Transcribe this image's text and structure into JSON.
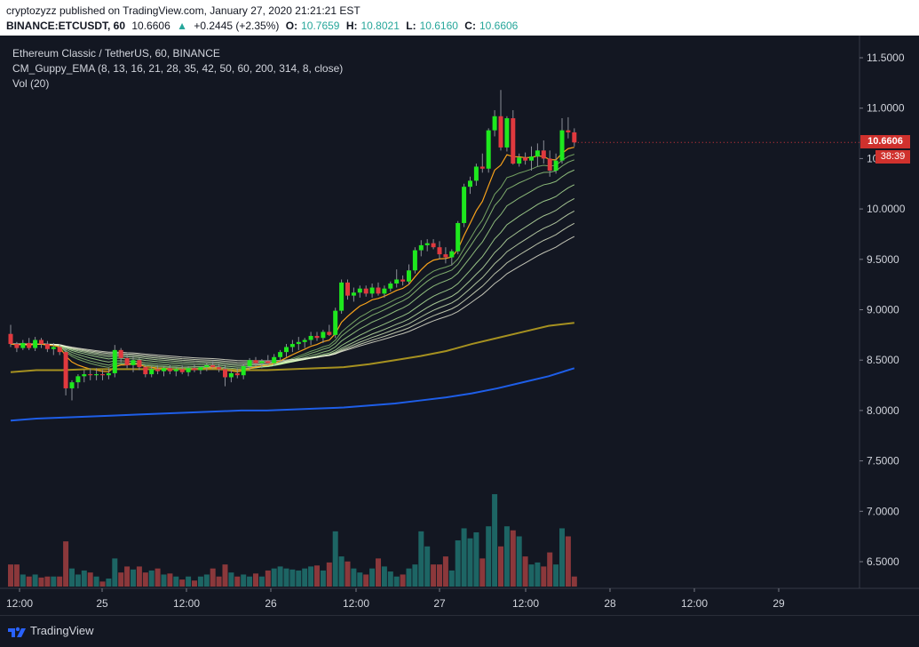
{
  "header": {
    "publish_line": "cryptozyzz published on TradingView.com, January 27, 2020 21:21:21 EST",
    "symbol": "BINANCE:ETCUSDT, 60",
    "last": "10.6606",
    "change": "+0.2445 (+2.35%)",
    "o_label": "O:",
    "o_value": "10.7659",
    "h_label": "H:",
    "h_value": "10.8021",
    "l_label": "L:",
    "l_value": "10.6160",
    "c_label": "C:",
    "c_value": "10.6606"
  },
  "legend": {
    "title": "Ethereum Classic / TetherUS, 60, BINANCE",
    "indicator": "CM_Guppy_EMA (8, 13, 16, 21, 28, 35, 42, 50, 60, 200, 314, 8, close)",
    "volume": "Vol (20)"
  },
  "price_tag": "10.6606",
  "countdown": "38:39",
  "footer": {
    "brand": "TradingView"
  },
  "colors": {
    "background": "#131722",
    "up": "#1ee81e",
    "down": "#e0393e",
    "vol_up": "#26a69a",
    "vol_down": "#ef5350",
    "ema_fast": "#f7a21b",
    "ema200": "#a69120",
    "ema314": "#1e5ee8"
  },
  "chart_data": {
    "type": "candlestick",
    "y_ticks": [
      "11.5000",
      "11.0000",
      "10.5000",
      "10.0000",
      "9.5000",
      "9.0000",
      "8.5000",
      "8.0000",
      "7.5000",
      "7.0000",
      "6.5000"
    ],
    "ylim": [
      6.25,
      11.75
    ],
    "x_ticks": [
      "12:00",
      "25",
      "12:00",
      "26",
      "12:00",
      "27",
      "12:00",
      "28",
      "12:00",
      "29"
    ],
    "candles": [
      [
        8.76,
        8.85,
        8.63,
        8.66
      ],
      [
        8.66,
        8.68,
        8.58,
        8.62
      ],
      [
        8.62,
        8.7,
        8.6,
        8.67
      ],
      [
        8.67,
        8.72,
        8.6,
        8.62
      ],
      [
        8.62,
        8.73,
        8.59,
        8.7
      ],
      [
        8.7,
        8.72,
        8.62,
        8.66
      ],
      [
        8.66,
        8.69,
        8.58,
        8.61
      ],
      [
        8.61,
        8.67,
        8.55,
        8.63
      ],
      [
        8.63,
        8.66,
        8.55,
        8.58
      ],
      [
        8.58,
        8.62,
        8.15,
        8.22
      ],
      [
        8.22,
        8.3,
        8.1,
        8.28
      ],
      [
        8.28,
        8.36,
        8.22,
        8.34
      ],
      [
        8.34,
        8.4,
        8.28,
        8.36
      ],
      [
        8.36,
        8.42,
        8.3,
        8.35
      ],
      [
        8.35,
        8.42,
        8.3,
        8.36
      ],
      [
        8.36,
        8.4,
        8.3,
        8.35
      ],
      [
        8.35,
        8.42,
        8.31,
        8.37
      ],
      [
        8.37,
        8.65,
        8.33,
        8.6
      ],
      [
        8.6,
        8.62,
        8.48,
        8.52
      ],
      [
        8.52,
        8.56,
        8.42,
        8.45
      ],
      [
        8.45,
        8.54,
        8.38,
        8.5
      ],
      [
        8.5,
        8.52,
        8.4,
        8.43
      ],
      [
        8.43,
        8.45,
        8.33,
        8.36
      ],
      [
        8.36,
        8.44,
        8.33,
        8.41
      ],
      [
        8.41,
        8.45,
        8.36,
        8.39
      ],
      [
        8.39,
        8.44,
        8.34,
        8.42
      ],
      [
        8.42,
        8.45,
        8.36,
        8.39
      ],
      [
        8.39,
        8.43,
        8.34,
        8.41
      ],
      [
        8.41,
        8.45,
        8.36,
        8.38
      ],
      [
        8.38,
        8.44,
        8.34,
        8.42
      ],
      [
        8.42,
        8.46,
        8.38,
        8.4
      ],
      [
        8.4,
        8.44,
        8.36,
        8.43
      ],
      [
        8.43,
        8.47,
        8.39,
        8.45
      ],
      [
        8.45,
        8.49,
        8.41,
        8.43
      ],
      [
        8.43,
        8.46,
        8.38,
        8.41
      ],
      [
        8.41,
        8.45,
        8.24,
        8.33
      ],
      [
        8.33,
        8.4,
        8.28,
        8.37
      ],
      [
        8.37,
        8.42,
        8.32,
        8.35
      ],
      [
        8.35,
        8.46,
        8.31,
        8.44
      ],
      [
        8.44,
        8.52,
        8.4,
        8.5
      ],
      [
        8.5,
        8.53,
        8.44,
        8.47
      ],
      [
        8.47,
        8.51,
        8.42,
        8.49
      ],
      [
        8.49,
        8.55,
        8.45,
        8.47
      ],
      [
        8.47,
        8.56,
        8.44,
        8.53
      ],
      [
        8.53,
        8.6,
        8.49,
        8.58
      ],
      [
        8.58,
        8.66,
        8.53,
        8.63
      ],
      [
        8.63,
        8.7,
        8.58,
        8.66
      ],
      [
        8.66,
        8.73,
        8.6,
        8.68
      ],
      [
        8.68,
        8.72,
        8.62,
        8.7
      ],
      [
        8.7,
        8.78,
        8.65,
        8.74
      ],
      [
        8.74,
        8.78,
        8.69,
        8.72
      ],
      [
        8.72,
        8.8,
        8.67,
        8.78
      ],
      [
        8.78,
        8.85,
        8.74,
        8.75
      ],
      [
        8.75,
        9.02,
        8.72,
        8.99
      ],
      [
        8.99,
        9.3,
        8.96,
        9.27
      ],
      [
        9.27,
        9.3,
        9.1,
        9.14
      ],
      [
        9.14,
        9.22,
        9.08,
        9.17
      ],
      [
        9.17,
        9.24,
        9.12,
        9.21
      ],
      [
        9.21,
        9.24,
        9.13,
        9.16
      ],
      [
        9.16,
        9.26,
        9.12,
        9.22
      ],
      [
        9.22,
        9.27,
        9.14,
        9.16
      ],
      [
        9.16,
        9.24,
        9.12,
        9.21
      ],
      [
        9.21,
        9.28,
        9.18,
        9.26
      ],
      [
        9.26,
        9.4,
        9.22,
        9.3
      ],
      [
        9.3,
        9.34,
        9.24,
        9.28
      ],
      [
        9.28,
        9.45,
        9.25,
        9.39
      ],
      [
        9.39,
        9.62,
        9.36,
        9.59
      ],
      [
        9.59,
        9.69,
        9.53,
        9.64
      ],
      [
        9.64,
        9.7,
        9.58,
        9.66
      ],
      [
        9.66,
        9.7,
        9.6,
        9.62
      ],
      [
        9.62,
        9.68,
        9.5,
        9.55
      ],
      [
        9.55,
        9.62,
        9.46,
        9.52
      ],
      [
        9.52,
        9.6,
        9.44,
        9.58
      ],
      [
        9.58,
        9.88,
        9.55,
        9.86
      ],
      [
        9.86,
        10.25,
        9.82,
        10.22
      ],
      [
        10.22,
        10.32,
        10.15,
        10.28
      ],
      [
        10.28,
        10.45,
        10.23,
        10.42
      ],
      [
        10.42,
        10.55,
        10.36,
        10.4
      ],
      [
        10.4,
        10.8,
        10.36,
        10.78
      ],
      [
        10.78,
        10.98,
        10.72,
        10.92
      ],
      [
        10.92,
        11.18,
        10.58,
        10.61
      ],
      [
        10.61,
        10.92,
        10.57,
        10.9
      ],
      [
        10.9,
        10.98,
        10.44,
        10.45
      ],
      [
        10.45,
        10.55,
        10.42,
        10.51
      ],
      [
        10.51,
        10.56,
        10.44,
        10.48
      ],
      [
        10.48,
        10.62,
        10.38,
        10.52
      ],
      [
        10.52,
        10.65,
        10.42,
        10.58
      ],
      [
        10.58,
        10.68,
        10.45,
        10.5
      ],
      [
        10.5,
        10.58,
        10.32,
        10.38
      ],
      [
        10.38,
        10.55,
        10.35,
        10.48
      ],
      [
        10.48,
        10.9,
        10.45,
        10.78
      ],
      [
        10.78,
        10.91,
        10.7,
        10.76
      ],
      [
        10.76,
        10.8,
        10.62,
        10.66
      ]
    ],
    "volumes": [
      0.22,
      0.22,
      0.12,
      0.1,
      0.12,
      0.09,
      0.1,
      0.1,
      0.1,
      0.45,
      0.18,
      0.12,
      0.16,
      0.14,
      0.1,
      0.05,
      0.08,
      0.28,
      0.14,
      0.2,
      0.17,
      0.2,
      0.14,
      0.16,
      0.18,
      0.12,
      0.13,
      0.1,
      0.07,
      0.1,
      0.06,
      0.1,
      0.12,
      0.18,
      0.1,
      0.22,
      0.14,
      0.1,
      0.12,
      0.1,
      0.13,
      0.1,
      0.16,
      0.18,
      0.2,
      0.18,
      0.17,
      0.16,
      0.18,
      0.2,
      0.21,
      0.16,
      0.24,
      0.55,
      0.3,
      0.25,
      0.18,
      0.14,
      0.12,
      0.18,
      0.28,
      0.2,
      0.15,
      0.1,
      0.12,
      0.18,
      0.22,
      0.55,
      0.4,
      0.22,
      0.22,
      0.3,
      0.16,
      0.46,
      0.58,
      0.48,
      0.54,
      0.28,
      0.6,
      0.92,
      0.4,
      0.6,
      0.56,
      0.5,
      0.3,
      0.22,
      0.24,
      0.2,
      0.34,
      0.22,
      0.58,
      0.5,
      0.1
    ],
    "vol_max_label": "",
    "ema200": [
      8.38,
      8.4,
      8.4,
      8.41,
      8.41,
      8.41,
      8.41,
      8.41,
      8.41,
      8.4,
      8.4,
      8.41,
      8.42,
      8.43,
      8.46,
      8.5,
      8.54,
      8.59,
      8.66,
      8.72,
      8.78,
      8.84,
      8.87
    ],
    "ema314": [
      7.9,
      7.92,
      7.93,
      7.94,
      7.95,
      7.96,
      7.97,
      7.98,
      7.99,
      8.0,
      8.0,
      8.01,
      8.02,
      8.03,
      8.05,
      8.07,
      8.1,
      8.13,
      8.17,
      8.22,
      8.28,
      8.34,
      8.42
    ]
  }
}
